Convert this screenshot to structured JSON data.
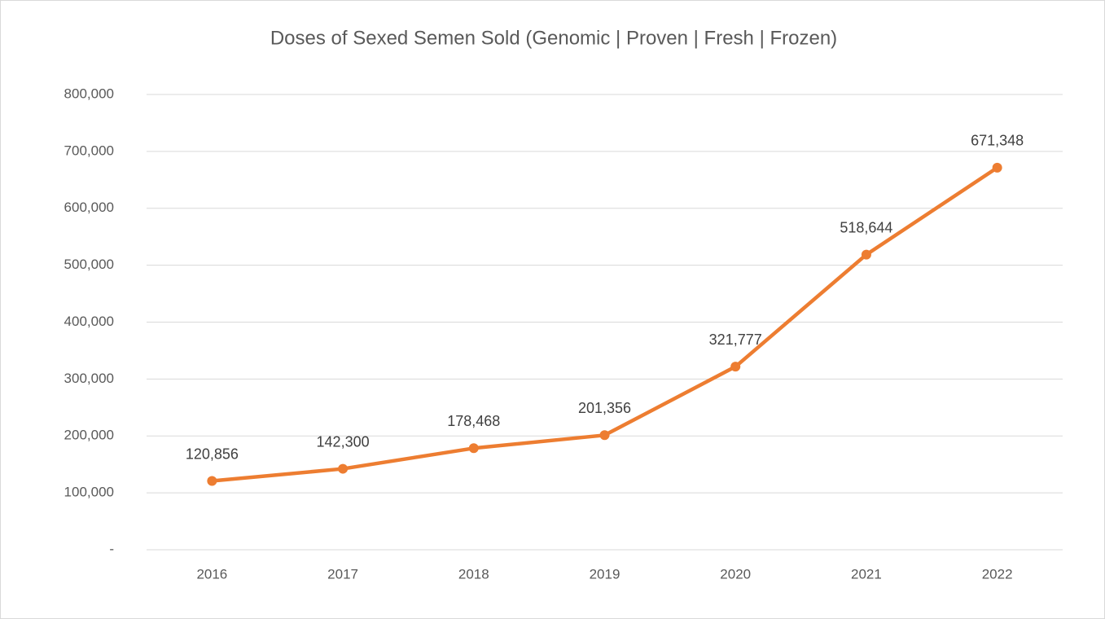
{
  "chart_data": {
    "type": "line",
    "title": "Doses of Sexed Semen  Sold (Genomic | Proven | Fresh | Frozen)",
    "categories": [
      "2016",
      "2017",
      "2018",
      "2019",
      "2020",
      "2021",
      "2022"
    ],
    "series": [
      {
        "name": "Doses",
        "color": "#ed7d31",
        "values": [
          120856,
          142300,
          178468,
          201356,
          321777,
          518644,
          671348
        ],
        "value_labels": [
          "120,856",
          "142,300",
          "178,468",
          "201,356",
          "321,777",
          "518,644",
          "671,348"
        ]
      }
    ],
    "ylim": [
      0,
      800000
    ],
    "yticks": [
      {
        "value": 0,
        "label": "-"
      },
      {
        "value": 100000,
        "label": "100,000"
      },
      {
        "value": 200000,
        "label": "200,000"
      },
      {
        "value": 300000,
        "label": "300,000"
      },
      {
        "value": 400000,
        "label": "400,000"
      },
      {
        "value": 500000,
        "label": "500,000"
      },
      {
        "value": 600000,
        "label": "600,000"
      },
      {
        "value": 700000,
        "label": "700,000"
      },
      {
        "value": 800000,
        "label": "800,000"
      }
    ],
    "grid": true
  }
}
